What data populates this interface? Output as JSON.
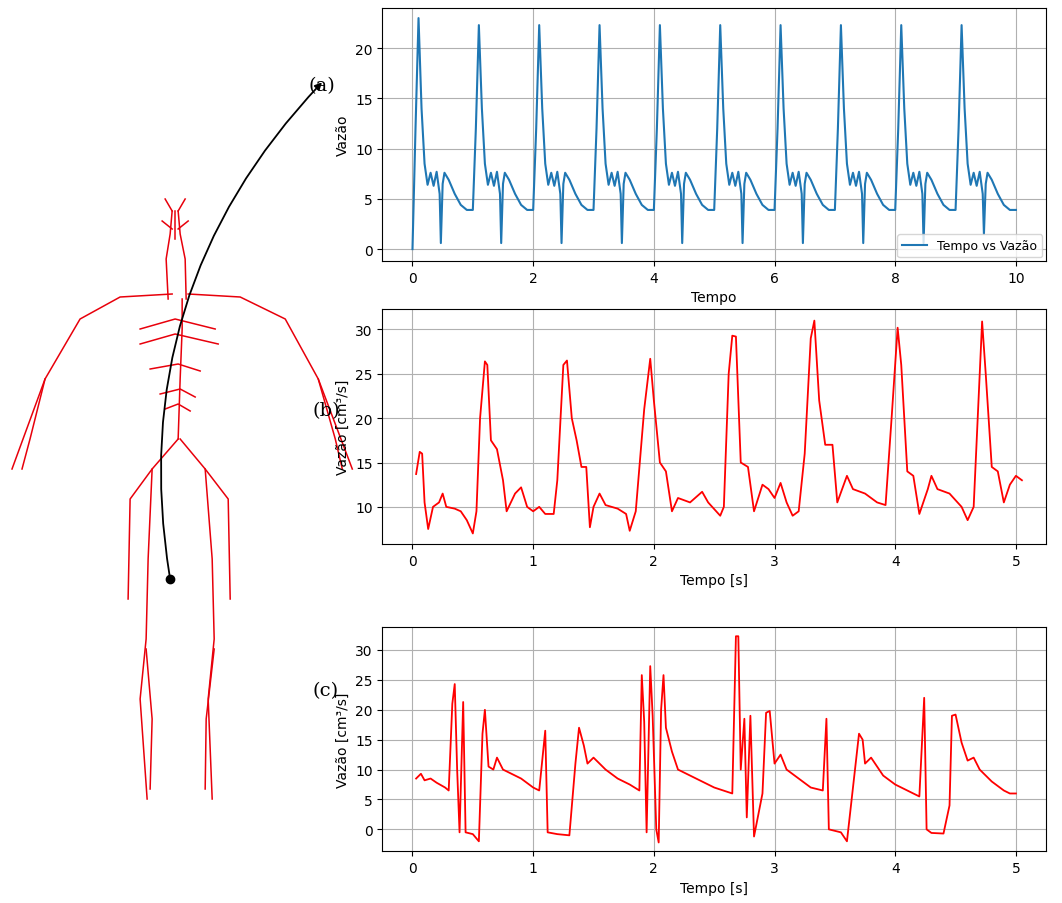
{
  "chart_data": [
    {
      "type": "line",
      "annotation": "(a)",
      "x_label": "Tempo",
      "y_label": "Vazão",
      "xlim": [
        -0.5,
        10.5
      ],
      "ylim": [
        -1.2,
        24
      ],
      "xticks": [
        0,
        2,
        4,
        6,
        8,
        10
      ],
      "yticks": [
        0,
        5,
        10,
        15,
        20
      ],
      "grid": true,
      "legend": "lower right",
      "x": [
        0,
        0.05,
        0.1,
        0.15,
        0.2,
        0.25,
        0.3,
        0.35,
        0.4,
        0.45,
        0.47,
        0.5,
        0.53,
        0.6,
        0.7,
        0.8,
        0.9,
        1,
        1.05,
        1.1,
        1.15,
        1.2,
        1.25,
        1.3,
        1.35,
        1.4,
        1.45,
        1.47,
        1.5,
        1.53,
        1.6,
        1.7,
        1.8,
        1.9,
        2,
        2.05,
        2.1,
        2.15,
        2.2,
        2.25,
        2.3,
        2.35,
        2.4,
        2.45,
        2.47,
        2.5,
        2.53,
        2.6,
        2.7,
        2.8,
        2.9,
        3,
        3.05,
        3.1,
        3.15,
        3.2,
        3.25,
        3.3,
        3.35,
        3.4,
        3.45,
        3.47,
        3.5,
        3.53,
        3.6,
        3.7,
        3.8,
        3.9,
        4,
        4.05,
        4.1,
        4.15,
        4.2,
        4.25,
        4.3,
        4.35,
        4.4,
        4.45,
        4.47,
        4.5,
        4.53,
        4.6,
        4.7,
        4.8,
        4.9,
        5,
        5.05,
        5.1,
        5.15,
        5.2,
        5.25,
        5.3,
        5.35,
        5.4,
        5.45,
        5.47,
        5.5,
        5.53,
        5.6,
        5.7,
        5.8,
        5.9,
        6,
        6.05,
        6.1,
        6.15,
        6.2,
        6.25,
        6.3,
        6.35,
        6.4,
        6.45,
        6.47,
        6.5,
        6.53,
        6.6,
        6.7,
        6.8,
        6.9,
        7,
        7.05,
        7.1,
        7.15,
        7.2,
        7.25,
        7.3,
        7.35,
        7.4,
        7.45,
        7.47,
        7.5,
        7.53,
        7.6,
        7.7,
        7.8,
        7.9,
        8,
        8.05,
        8.1,
        8.15,
        8.2,
        8.25,
        8.3,
        8.35,
        8.4,
        8.45,
        8.47,
        8.5,
        8.53,
        8.6,
        8.7,
        8.8,
        8.9,
        9,
        9.05,
        9.1,
        9.15,
        9.2,
        9.25,
        9.3,
        9.35,
        9.4,
        9.45,
        9.47,
        9.5,
        9.53,
        9.6,
        9.7,
        9.8,
        9.9,
        10
      ],
      "series": [
        {
          "name": "Tempo vs Vazão",
          "color": "#1f77b4",
          "values": [
            0,
            12,
            23,
            14,
            8.5,
            6.4,
            7.6,
            6.3,
            7.7,
            5.5,
            0.6,
            6.5,
            7.6,
            6.9,
            5.5,
            4.4,
            3.9,
            3.9,
            12,
            22.3,
            14,
            8.5,
            6.4,
            7.6,
            6.3,
            7.7,
            5.5,
            0.6,
            6.5,
            7.6,
            6.9,
            5.5,
            4.4,
            3.9,
            3.9,
            12,
            22.3,
            14,
            8.5,
            6.4,
            7.6,
            6.3,
            7.7,
            5.5,
            0.6,
            6.5,
            7.6,
            6.9,
            5.5,
            4.4,
            3.9,
            3.9,
            12,
            22.3,
            14,
            8.5,
            6.4,
            7.6,
            6.3,
            7.7,
            5.5,
            0.6,
            6.5,
            7.6,
            6.9,
            5.5,
            4.4,
            3.9,
            3.9,
            12,
            22.3,
            14,
            8.5,
            6.4,
            7.6,
            6.3,
            7.7,
            5.5,
            0.6,
            6.5,
            7.6,
            6.9,
            5.5,
            4.4,
            3.9,
            3.9,
            12,
            22.3,
            14,
            8.5,
            6.4,
            7.6,
            6.3,
            7.7,
            5.5,
            0.6,
            6.5,
            7.6,
            6.9,
            5.5,
            4.4,
            3.9,
            3.9,
            12,
            22.3,
            14,
            8.5,
            6.4,
            7.6,
            6.3,
            7.7,
            5.5,
            0.6,
            6.5,
            7.6,
            6.9,
            5.5,
            4.4,
            3.9,
            3.9,
            12,
            22.3,
            14,
            8.5,
            6.4,
            7.6,
            6.3,
            7.7,
            5.5,
            0.6,
            6.5,
            7.6,
            6.9,
            5.5,
            4.4,
            3.9,
            3.9,
            12,
            22.3,
            14,
            8.5,
            6.4,
            7.6,
            6.3,
            7.7,
            5.5,
            0.6,
            6.5,
            7.6,
            6.9,
            5.5,
            4.4,
            3.9,
            3.9,
            12,
            22.3,
            14,
            8.5,
            6.4,
            7.6,
            6.3,
            7.7,
            5.5,
            1.5,
            6.5,
            7.6,
            6.9,
            5.5,
            4.4,
            3.9,
            3.9
          ]
        }
      ]
    },
    {
      "type": "line",
      "annotation": "(b)",
      "x_label": "Tempo [s]",
      "y_label": "Vazão [cm³/s]",
      "xlim": [
        -0.25,
        5.25
      ],
      "ylim": [
        5.8,
        32.3
      ],
      "xticks": [
        0,
        1,
        2,
        3,
        4,
        5
      ],
      "yticks": [
        10,
        15,
        20,
        25,
        30
      ],
      "grid": true,
      "x": [
        0.03,
        0.06,
        0.08,
        0.1,
        0.13,
        0.17,
        0.22,
        0.25,
        0.28,
        0.35,
        0.4,
        0.45,
        0.5,
        0.53,
        0.56,
        0.6,
        0.62,
        0.65,
        0.7,
        0.75,
        0.78,
        0.85,
        0.9,
        0.95,
        1.0,
        1.05,
        1.1,
        1.17,
        1.2,
        1.25,
        1.28,
        1.32,
        1.36,
        1.4,
        1.44,
        1.47,
        1.5,
        1.55,
        1.6,
        1.7,
        1.77,
        1.8,
        1.85,
        1.92,
        1.97,
        2.0,
        2.05,
        2.1,
        2.15,
        2.2,
        2.3,
        2.4,
        2.45,
        2.55,
        2.58,
        2.62,
        2.65,
        2.68,
        2.72,
        2.78,
        2.83,
        2.9,
        2.95,
        3.0,
        3.05,
        3.1,
        3.15,
        3.2,
        3.25,
        3.3,
        3.33,
        3.37,
        3.42,
        3.48,
        3.52,
        3.6,
        3.65,
        3.75,
        3.85,
        3.92,
        3.97,
        4.02,
        4.05,
        4.1,
        4.15,
        4.2,
        4.27,
        4.3,
        4.35,
        4.45,
        4.55,
        4.6,
        4.65,
        4.72,
        4.75,
        4.8,
        4.85,
        4.9,
        4.95,
        5.0,
        5.05
      ],
      "series": [
        {
          "color": "#ff0000",
          "values": [
            13.7,
            16.2,
            16,
            10.5,
            7.5,
            10,
            10.5,
            11.5,
            10,
            9.8,
            9.5,
            8.5,
            7,
            9.5,
            20,
            26.4,
            26,
            17.5,
            16.5,
            13,
            9.5,
            11.5,
            12.2,
            10,
            9.5,
            10,
            9.2,
            9.2,
            13,
            26,
            26.5,
            20,
            17.5,
            14.5,
            14.5,
            7.7,
            10,
            11.5,
            10.2,
            9.8,
            9.2,
            7.3,
            9.5,
            21,
            26.7,
            22,
            15,
            14,
            9.5,
            11,
            10.5,
            11.7,
            10.5,
            9,
            10,
            25,
            29.3,
            29.2,
            15,
            14.5,
            9.5,
            12.5,
            12,
            11,
            12.7,
            10.5,
            9,
            9.5,
            16,
            29,
            31,
            22,
            17,
            17,
            10.5,
            13.5,
            12,
            11.5,
            10.5,
            10.2,
            20,
            30.2,
            26,
            14,
            13.5,
            9.2,
            12,
            13.5,
            12,
            11.5,
            10,
            8.5,
            10,
            30.9,
            25,
            14.5,
            14,
            10.5,
            12.5,
            13.5,
            13
          ]
        }
      ]
    },
    {
      "type": "line",
      "annotation": "(c)",
      "x_label": "Tempo [s]",
      "y_label": "Vazão [cm³/s]",
      "xlim": [
        -0.25,
        5.25
      ],
      "ylim": [
        -3.7,
        33.8
      ],
      "xticks": [
        0,
        1,
        2,
        3,
        4,
        5
      ],
      "yticks": [
        0,
        5,
        10,
        15,
        20,
        25,
        30
      ],
      "grid": true,
      "x": [
        0.03,
        0.07,
        0.1,
        0.15,
        0.2,
        0.27,
        0.3,
        0.33,
        0.35,
        0.37,
        0.39,
        0.42,
        0.44,
        0.5,
        0.55,
        0.58,
        0.6,
        0.63,
        0.67,
        0.7,
        0.75,
        0.8,
        0.9,
        1.0,
        1.05,
        1.1,
        1.12,
        1.2,
        1.3,
        1.35,
        1.38,
        1.42,
        1.45,
        1.5,
        1.6,
        1.7,
        1.8,
        1.88,
        1.9,
        1.92,
        1.94,
        1.97,
        1.99,
        2.02,
        2.04,
        2.06,
        2.08,
        2.1,
        2.15,
        2.2,
        2.3,
        2.4,
        2.5,
        2.65,
        2.68,
        2.7,
        2.72,
        2.75,
        2.77,
        2.8,
        2.83,
        2.9,
        2.93,
        2.96,
        3.0,
        3.05,
        3.1,
        3.2,
        3.3,
        3.4,
        3.43,
        3.45,
        3.55,
        3.6,
        3.7,
        3.73,
        3.75,
        3.8,
        3.9,
        4.0,
        4.2,
        4.24,
        4.26,
        4.3,
        4.4,
        4.45,
        4.47,
        4.5,
        4.55,
        4.6,
        4.65,
        4.7,
        4.8,
        4.9,
        4.95,
        5.0
      ],
      "series": [
        {
          "color": "#ff0000",
          "values": [
            8.5,
            9.3,
            8.2,
            8.5,
            7.8,
            7,
            6.5,
            21,
            24.3,
            10,
            -0.5,
            21.3,
            -0.5,
            -0.8,
            -2,
            16,
            20,
            10.5,
            10,
            12,
            10,
            9.5,
            8.5,
            7,
            6.5,
            16.5,
            -0.5,
            -0.8,
            -1,
            11,
            17,
            14,
            11,
            12,
            10,
            8.5,
            7.5,
            6.5,
            25.8,
            18,
            -0.5,
            27.3,
            19,
            0,
            -2.2,
            20,
            25.8,
            17,
            13,
            10,
            9,
            8,
            7,
            6,
            32.3,
            32.3,
            10,
            18.5,
            2,
            19,
            -1.2,
            6,
            19.5,
            19.8,
            11,
            12.5,
            10,
            8.5,
            7,
            6.5,
            18.5,
            0,
            -0.5,
            -2,
            16,
            15,
            11,
            12,
            9,
            7.5,
            5.5,
            22,
            0,
            -0.6,
            -0.7,
            4,
            19,
            19.2,
            14.5,
            11.5,
            12,
            10,
            8,
            6.5,
            6,
            6
          ]
        }
      ]
    }
  ]
}
